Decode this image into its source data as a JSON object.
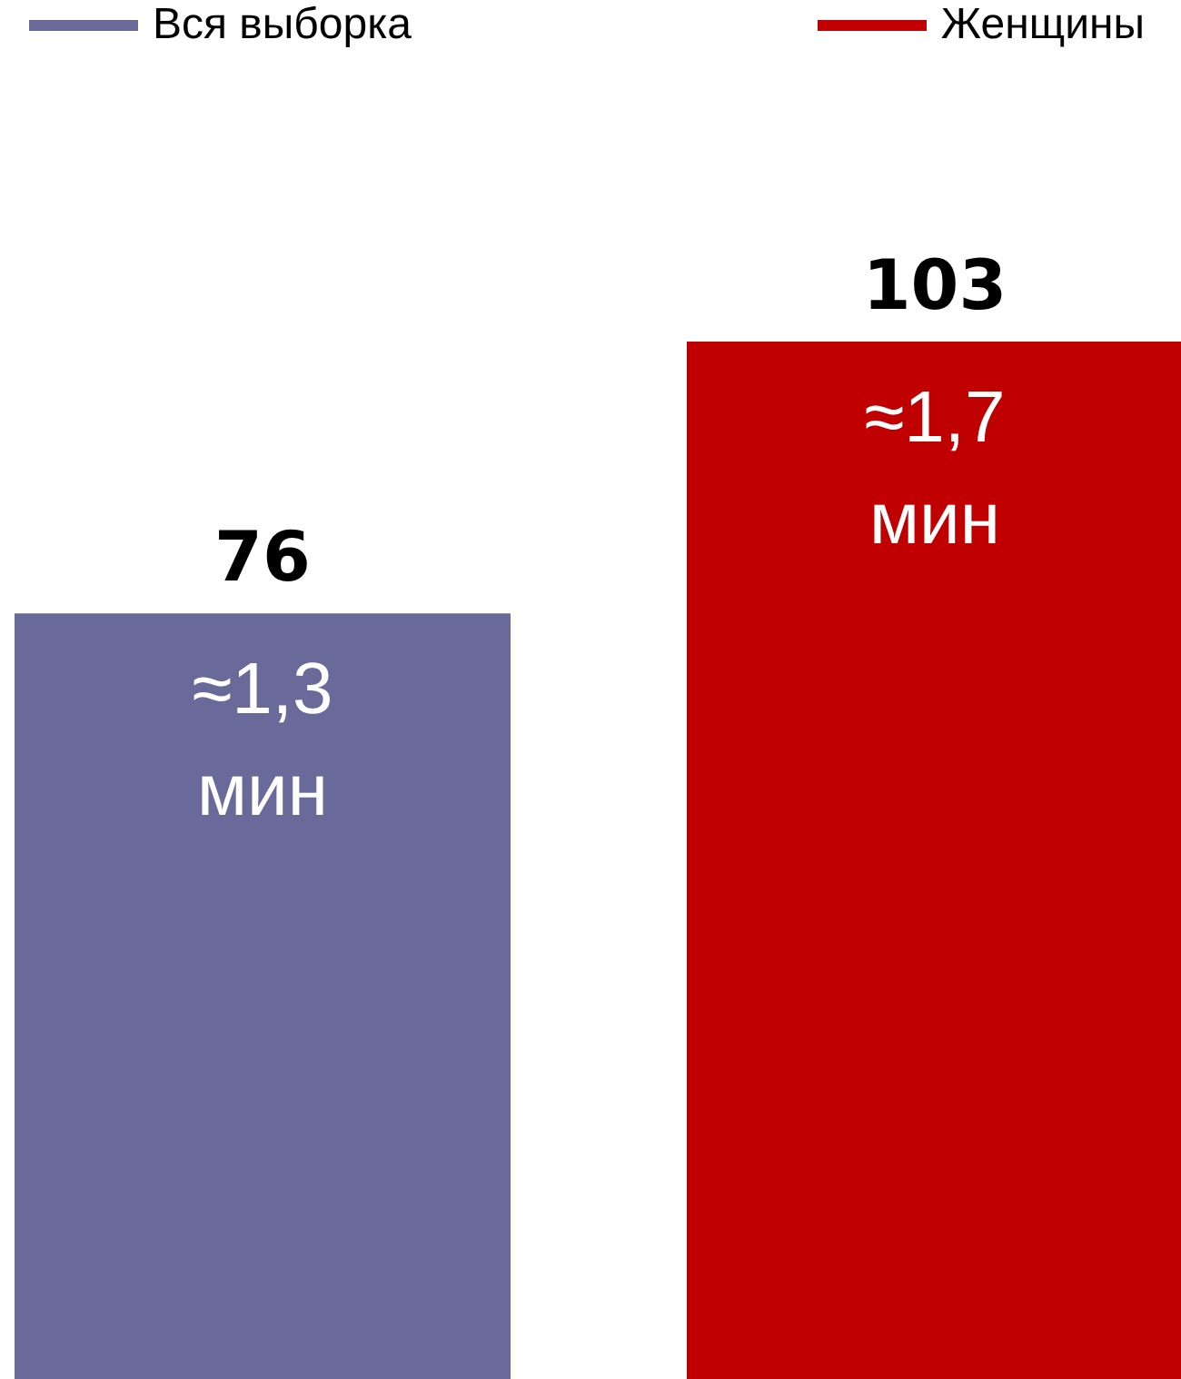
{
  "chart_data": {
    "type": "bar",
    "categories": [
      null
    ],
    "series": [
      {
        "name": "Вся выборка",
        "color": "#6a6a9a",
        "values": [
          76
        ]
      },
      {
        "name": "Женщины",
        "color": "#c00000",
        "values": [
          103
        ]
      }
    ],
    "tick_labels": false,
    "grid": false,
    "legend": "top",
    "data_labels": true,
    "annotations": [
      "≈1,3 мин",
      "≈1,7 мин"
    ]
  }
}
